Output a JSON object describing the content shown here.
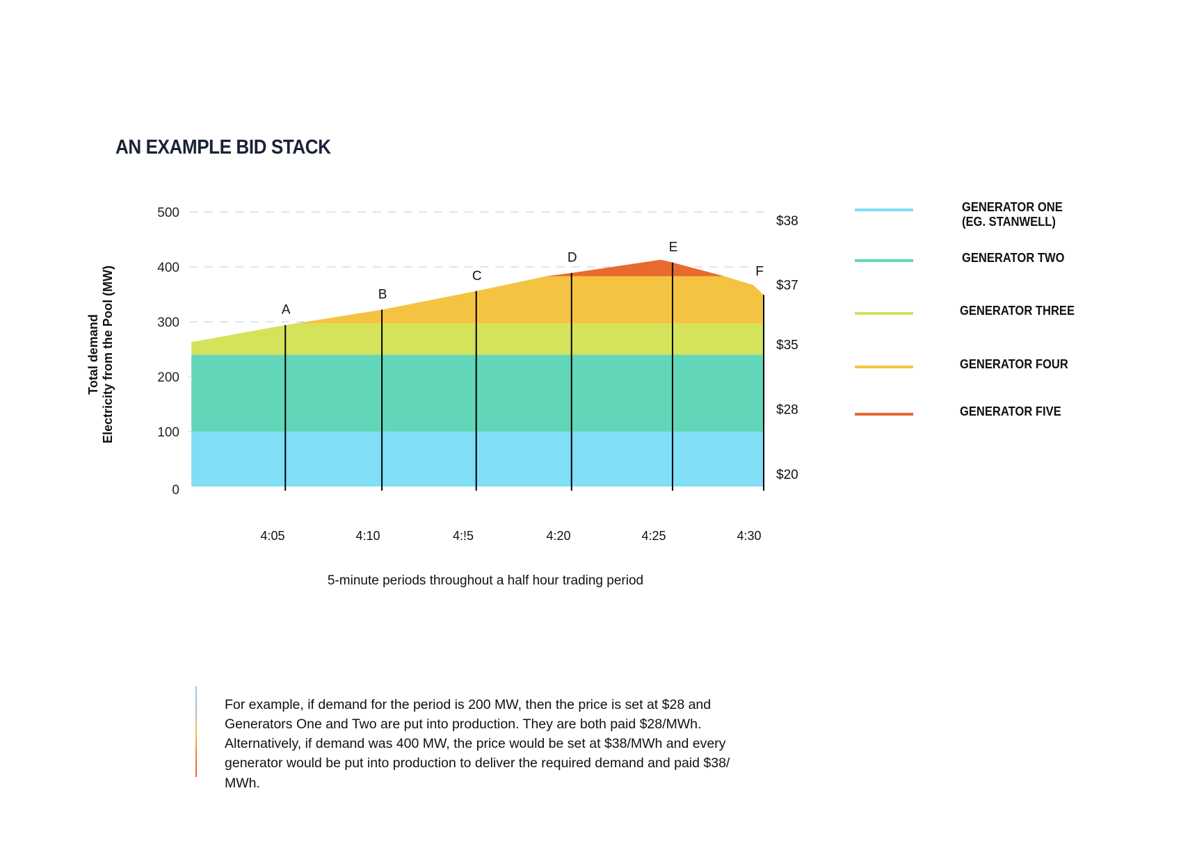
{
  "chart_data": {
    "type": "area",
    "title": "AN EXAMPLE BID STACK",
    "ylabel": [
      "Total demand",
      "Electricity from the Pool (MW)"
    ],
    "xlabel": "5-minute periods throughout a half hour trading period",
    "ylim": [
      0,
      500
    ],
    "y_ticks": [
      0,
      100,
      200,
      300,
      400,
      500
    ],
    "dashed_gridlines_at": [
      300,
      400,
      500
    ],
    "x_ticks": [
      {
        "time": "4:05:00",
        "label": "4:05"
      },
      {
        "time": "4:10:00",
        "label": "4:10"
      },
      {
        "time": "4:15:00",
        "label": "4:!5"
      },
      {
        "time": "4:20:00",
        "label": "4:20"
      },
      {
        "time": "4:25:00",
        "label": "4:25"
      },
      {
        "time": "4:30:00",
        "label": "4:30"
      }
    ],
    "price_labels": [
      {
        "mw": 485,
        "label": "$38"
      },
      {
        "mw": 368,
        "label": "$37"
      },
      {
        "mw": 259,
        "label": "$35"
      },
      {
        "mw": 141,
        "label": "$28"
      },
      {
        "mw": 23,
        "label": "$20"
      }
    ],
    "demand_outline": [
      {
        "time": "4:00:44",
        "mw": 263
      },
      {
        "time": "4:05:40",
        "mw": 294
      },
      {
        "time": "4:10:44",
        "mw": 322
      },
      {
        "time": "4:15:41",
        "mw": 356
      },
      {
        "time": "4:19:22",
        "mw": 383
      },
      {
        "time": "4:20:41",
        "mw": 389
      },
      {
        "time": "4:25:22",
        "mw": 413
      },
      {
        "time": "4:25:59",
        "mw": 408
      },
      {
        "time": "4:28:48",
        "mw": 382
      },
      {
        "time": "4:30:13",
        "mw": 367
      },
      {
        "time": "4:30:46",
        "mw": 349
      }
    ],
    "periods": [
      {
        "label": "A",
        "time": "4:05:40",
        "mw": 294
      },
      {
        "label": "B",
        "time": "4:10:44",
        "mw": 322
      },
      {
        "label": "C",
        "time": "4:15:41",
        "mw": 356
      },
      {
        "label": "D",
        "time": "4:20:41",
        "mw": 389
      },
      {
        "label": "E",
        "time": "4:25:59",
        "mw": 408
      },
      {
        "label": "F",
        "time": "4:30:46",
        "mw": 349
      }
    ],
    "series": [
      {
        "name": "GENERATOR ONE\n(EG. STANWELL)",
        "from": 0,
        "to": 100,
        "color": "#80DEF5"
      },
      {
        "name": "GENERATOR TWO",
        "from": 100,
        "to": 240,
        "color": "#62D6B8"
      },
      {
        "name": "GENERATOR THREE",
        "from": 240,
        "to": 297,
        "color": "#D4E35A"
      },
      {
        "name": "GENERATOR FOUR",
        "from": 297,
        "to": 383,
        "color": "#F5C342"
      },
      {
        "name": "GENERATOR FIVE",
        "from": 383,
        "to": 500,
        "color": "#E86A2E"
      }
    ],
    "legend_position": "right"
  },
  "note": "For example, if demand for the period is 200 MW, then the price is set at $28 and Generators One and Two are put into production. They are both paid $28/MWh. Alternatively, if demand was 400 MW, the price would be set at $38/MWh and every generator would be put into production to deliver the required demand and paid $38/ MWh."
}
